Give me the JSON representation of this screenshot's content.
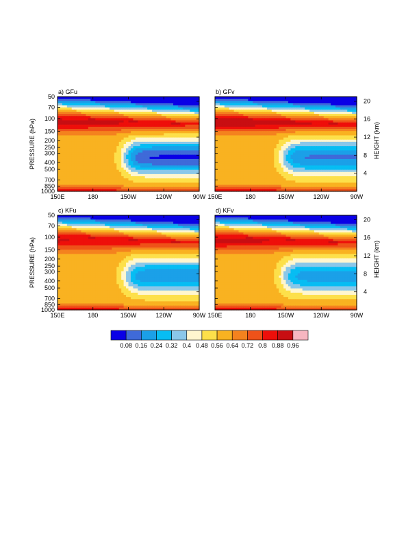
{
  "chart_data": {
    "type": "heatmap",
    "levels": [
      0.08,
      0.16,
      0.24,
      0.32,
      0.4,
      0.48,
      0.56,
      0.64,
      0.72,
      0.8,
      0.88,
      0.96
    ],
    "colors": [
      "#ffffff",
      "#0a00e6",
      "#3f6ad9",
      "#1ba0e8",
      "#07bdf3",
      "#8ac7e9",
      "#fff6cf",
      "#fde04a",
      "#f9b221",
      "#f4821e",
      "#ee5219",
      "#ee0f0a",
      "#c80e12",
      "#f7b6c0"
    ],
    "x_ticks": [
      "150E",
      "180",
      "150W",
      "120W",
      "90W"
    ],
    "x_tick_values": [
      150,
      180,
      210,
      240,
      270
    ],
    "xlim": [
      150,
      270
    ],
    "pressure_ticks": [
      "50",
      "70",
      "100",
      "150",
      "200",
      "250",
      "300",
      "400",
      "500",
      "700",
      "850",
      "1000"
    ],
    "pressure_tick_values": [
      50,
      70,
      100,
      150,
      200,
      250,
      300,
      400,
      500,
      700,
      850,
      1000
    ],
    "ylim_hpa": [
      1000,
      50
    ],
    "ylabel_left": "PRESSURE (hPa)",
    "ylabel_right": "HEIGHT (km)",
    "height_ticks": [
      "20",
      "16",
      "12",
      "8",
      "4"
    ],
    "height_tick_values": [
      20,
      16,
      12,
      8,
      4
    ],
    "panels": [
      {
        "title": "a) GFu",
        "dry_strength": 1.05,
        "upper_strength": 0.95
      },
      {
        "title": "b) GFv",
        "dry_strength": 0.9,
        "upper_strength": 1.05
      },
      {
        "title": "c) KFu",
        "dry_strength": 0.85,
        "upper_strength": 0.85
      },
      {
        "title": "d) KFv",
        "dry_strength": 0.8,
        "upper_strength": 0.92
      }
    ]
  }
}
